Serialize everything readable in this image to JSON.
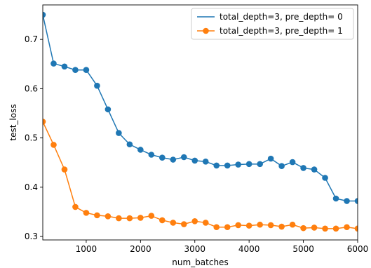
{
  "chart_data": {
    "type": "line",
    "xlabel": "num_batches",
    "ylabel": "test_loss",
    "xlim": [
      200,
      6000
    ],
    "ylim": [
      0.293,
      0.77
    ],
    "grid": false,
    "legend_position": "top-right",
    "x_ticks": [
      1000,
      2000,
      3000,
      4000,
      5000,
      6000
    ],
    "x_tick_labels": [
      "1000",
      "2000",
      "3000",
      "4000",
      "5000",
      "6000"
    ],
    "y_ticks": [
      0.3,
      0.4,
      0.5,
      0.6,
      0.7
    ],
    "y_tick_labels": [
      "0.3",
      "0.4",
      "0.5",
      "0.6",
      "0.7"
    ],
    "x": [
      200,
      400,
      600,
      800,
      1000,
      1200,
      1400,
      1600,
      1800,
      2000,
      2200,
      2400,
      2600,
      2800,
      3000,
      3200,
      3400,
      3600,
      3800,
      4000,
      4200,
      4400,
      4600,
      4800,
      5000,
      5200,
      5400,
      5600,
      5800,
      6000
    ],
    "series": [
      {
        "name": "total_depth=3, pre_depth= 0",
        "color": "#1f77b4",
        "values": [
          0.75,
          0.651,
          0.645,
          0.638,
          0.638,
          0.606,
          0.558,
          0.51,
          0.487,
          0.476,
          0.466,
          0.46,
          0.456,
          0.461,
          0.454,
          0.452,
          0.444,
          0.444,
          0.446,
          0.447,
          0.447,
          0.458,
          0.443,
          0.451,
          0.439,
          0.436,
          0.419,
          0.377,
          0.372,
          0.372
        ]
      },
      {
        "name": "total_depth=3, pre_depth= 1",
        "color": "#ff7f0e",
        "values": [
          0.533,
          0.486,
          0.436,
          0.36,
          0.348,
          0.343,
          0.341,
          0.337,
          0.337,
          0.338,
          0.342,
          0.333,
          0.328,
          0.325,
          0.331,
          0.328,
          0.319,
          0.319,
          0.323,
          0.322,
          0.324,
          0.323,
          0.32,
          0.324,
          0.317,
          0.318,
          0.316,
          0.316,
          0.319,
          0.316
        ]
      }
    ]
  }
}
